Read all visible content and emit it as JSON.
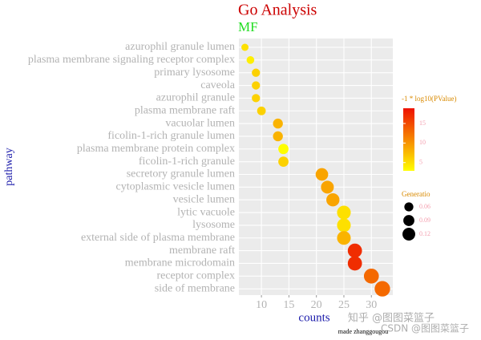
{
  "chart_data": {
    "type": "scatter",
    "title": "Go Analysis",
    "subtitle": "MF",
    "x_label": "counts",
    "y_label": "pathway",
    "caption": "made zhanggougou",
    "watermarks": [
      "知乎 @图图菜篮子",
      "CSDN @图图菜篮子"
    ],
    "categories": [
      "azurophil granule lumen",
      "plasma membrane signaling receptor complex",
      "primary lysosome",
      "caveola",
      "azurophil granule",
      "plasma membrane raft",
      "vacuolar lumen",
      "ficolin-1-rich granule lumen",
      "plasma membrane protein complex",
      "ficolin-1-rich granule",
      "secretory granule lumen",
      "cytoplasmic vesicle lumen",
      "vesicle lumen",
      "lytic vacuole",
      "lysosome",
      "external side of plasma membrane",
      "membrane raft",
      "membrane microdomain",
      "receptor complex",
      "side of membrane"
    ],
    "values": [
      7,
      8,
      9,
      9,
      9,
      10,
      13,
      13,
      14,
      14,
      21,
      22,
      23,
      25,
      25,
      25,
      27,
      27,
      30,
      32
    ],
    "color_values": [
      5,
      4,
      6,
      6,
      6,
      6,
      8,
      8,
      3,
      6,
      9,
      9,
      9,
      5,
      5,
      8,
      17,
      17,
      13,
      13
    ],
    "size_values": [
      0.038,
      0.044,
      0.05,
      0.05,
      0.05,
      0.055,
      0.072,
      0.072,
      0.077,
      0.077,
      0.116,
      0.121,
      0.127,
      0.138,
      0.138,
      0.138,
      0.149,
      0.149,
      0.165,
      0.176
    ],
    "color_title": "-1 * log10(PValue)",
    "color_lim": [
      2.9,
      18.9
    ],
    "color_ticks": [
      5,
      10,
      15
    ],
    "color_low": "#ffff00",
    "color_high": "#ee1100",
    "size_title": "Generatio",
    "size_ticks": [
      0.06,
      0.09,
      0.12
    ],
    "xlim": [
      5.9,
      33.9
    ],
    "xticks": [
      10,
      15,
      20,
      25,
      30
    ],
    "grid": true
  }
}
